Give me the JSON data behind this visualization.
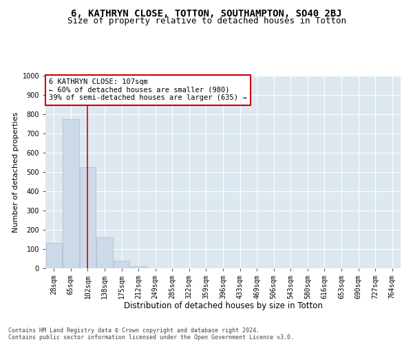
{
  "title1": "6, KATHRYN CLOSE, TOTTON, SOUTHAMPTON, SO40 2BJ",
  "title2": "Size of property relative to detached houses in Totton",
  "xlabel": "Distribution of detached houses by size in Totton",
  "ylabel": "Number of detached properties",
  "footnote": "Contains HM Land Registry data © Crown copyright and database right 2024.\nContains public sector information licensed under the Open Government Licence v3.0.",
  "bar_labels": [
    "28sqm",
    "65sqm",
    "102sqm",
    "138sqm",
    "175sqm",
    "212sqm",
    "249sqm",
    "285sqm",
    "322sqm",
    "359sqm",
    "396sqm",
    "433sqm",
    "469sqm",
    "506sqm",
    "543sqm",
    "580sqm",
    "616sqm",
    "653sqm",
    "690sqm",
    "727sqm",
    "764sqm"
  ],
  "bar_values": [
    132,
    775,
    525,
    160,
    40,
    12,
    0,
    0,
    0,
    0,
    0,
    0,
    0,
    0,
    0,
    0,
    0,
    0,
    0,
    0,
    0
  ],
  "bar_color": "#ccd9e8",
  "bar_edge_color": "#aabbd0",
  "vline_x": 2.0,
  "vline_color": "#cc0000",
  "annotation_text": "6 KATHRYN CLOSE: 107sqm\n← 60% of detached houses are smaller (980)\n39% of semi-detached houses are larger (635) →",
  "annotation_box_facecolor": "#ffffff",
  "annotation_box_edgecolor": "#cc0000",
  "ylim": [
    0,
    1000
  ],
  "yticks": [
    0,
    100,
    200,
    300,
    400,
    500,
    600,
    700,
    800,
    900,
    1000
  ],
  "bg_color": "#dde8f0",
  "grid_color": "#ffffff",
  "title1_fontsize": 10,
  "title2_fontsize": 9,
  "xlabel_fontsize": 8.5,
  "ylabel_fontsize": 8,
  "tick_fontsize": 7,
  "annotation_fontsize": 7.5
}
